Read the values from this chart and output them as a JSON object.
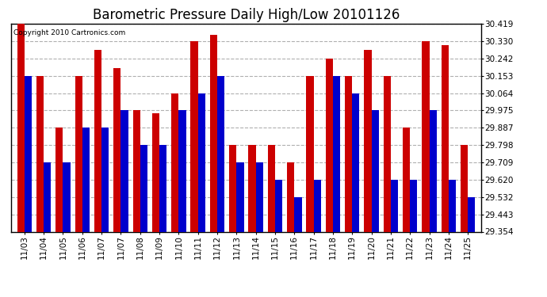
{
  "title": "Barometric Pressure Daily High/Low 20101126",
  "copyright": "Copyright 2010 Cartronics.com",
  "xlabels": [
    "11/03",
    "11/04",
    "11/05",
    "11/06",
    "11/07",
    "11/07",
    "11/08",
    "11/09",
    "11/10",
    "11/11",
    "11/12",
    "11/13",
    "11/14",
    "11/15",
    "11/16",
    "11/17",
    "11/18",
    "11/19",
    "11/20",
    "11/21",
    "11/22",
    "11/23",
    "11/24",
    "11/25"
  ],
  "highs": [
    30.419,
    30.153,
    29.887,
    30.153,
    30.286,
    30.19,
    29.975,
    29.96,
    30.064,
    30.33,
    30.364,
    29.798,
    29.798,
    29.798,
    29.709,
    30.153,
    30.242,
    30.153,
    30.286,
    30.153,
    29.887,
    30.33,
    30.31,
    29.798
  ],
  "lows": [
    30.153,
    29.709,
    29.709,
    29.887,
    29.887,
    29.975,
    29.798,
    29.798,
    29.975,
    30.064,
    30.153,
    29.709,
    29.709,
    29.62,
    29.532,
    29.62,
    30.153,
    30.064,
    29.975,
    29.62,
    29.62,
    29.975,
    29.62,
    29.532
  ],
  "high_color": "#cc0000",
  "low_color": "#0000cc",
  "background_color": "#ffffff",
  "grid_color": "#b0b0b0",
  "ymin": 29.354,
  "ymax": 30.419,
  "yticks": [
    30.419,
    30.33,
    30.242,
    30.153,
    30.064,
    29.975,
    29.887,
    29.798,
    29.709,
    29.62,
    29.532,
    29.443,
    29.354
  ],
  "title_fontsize": 12,
  "bar_width": 0.38
}
